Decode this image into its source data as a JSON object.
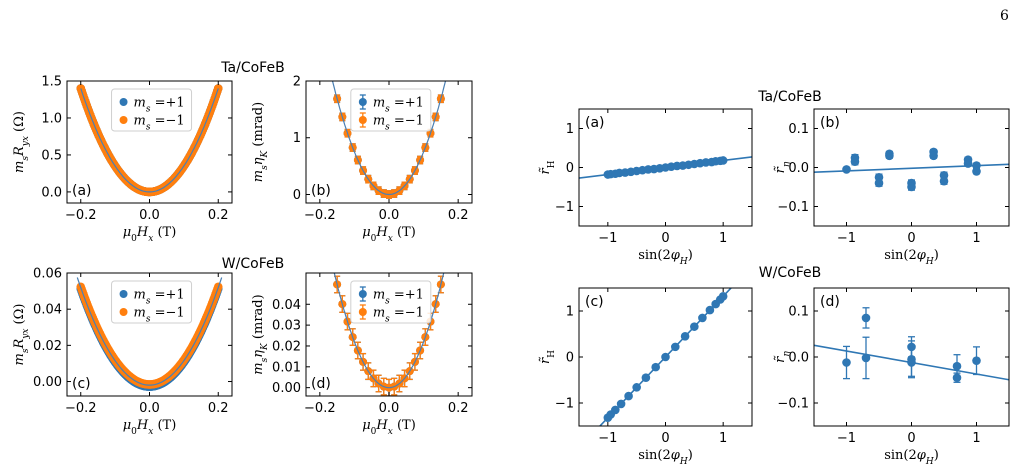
{
  "page_number": "6",
  "colors": {
    "blue": "#2f77b4",
    "orange": "#ff7f0e",
    "line": "#2f77b4"
  },
  "left_group_titles": [
    "Ta/CoFeB",
    "W/CoFeB"
  ],
  "right_group_titles": [
    "Ta/CoFeB",
    "W/CoFeB"
  ],
  "chart_data": [
    {
      "id": "a-left",
      "type": "scatter",
      "group": "Ta/CoFeB",
      "panel_label": "(a)",
      "xlabel": "μ0Hx (T)",
      "ylabel": "msRyx (Ω)",
      "xlim": [
        -0.24,
        0.24
      ],
      "ylim": [
        -0.15,
        1.5
      ],
      "xticks": [
        -0.2,
        0.0,
        0.2
      ],
      "xticklabels": [
        "−0.2",
        "0.0",
        "0.2"
      ],
      "yticks": [
        0.0,
        0.5,
        1.0,
        1.5
      ],
      "yticklabels": [
        "0.0",
        "0.5",
        "1.0",
        "1.5"
      ],
      "legend": [
        "ms=+1",
        "ms=−1"
      ],
      "legend_position": "top-center",
      "model": {
        "kind": "parabola",
        "a": 35,
        "c": 0.0,
        "xmin": -0.2,
        "xmax": 0.2
      },
      "series": [
        {
          "name": "ms=+1",
          "color": "#2f77b4",
          "x_range": [
            -0.2,
            0.2
          ],
          "n": 161,
          "offset": 0
        },
        {
          "name": "ms=−1",
          "color": "#ff7f0e",
          "x_range": [
            -0.2,
            0.2
          ],
          "n": 161,
          "offset": 0
        }
      ]
    },
    {
      "id": "b-left",
      "type": "scatter",
      "group": "Ta/CoFeB",
      "panel_label": "(b)",
      "xlabel": "μ0Hx (T)",
      "ylabel": "msηK (mrad)",
      "xlim": [
        -0.24,
        0.24
      ],
      "ylim": [
        -0.15,
        2.0
      ],
      "xticks": [
        -0.2,
        0.0,
        0.2
      ],
      "xticklabels": [
        "−0.2",
        "0.0",
        "0.2"
      ],
      "yticks": [
        0,
        1,
        2
      ],
      "yticklabels": [
        "0",
        "1",
        "2"
      ],
      "legend": [
        "ms=+1",
        "ms=−1"
      ],
      "legend_position": "top-center",
      "model": {
        "kind": "parabola",
        "a": 75,
        "c": 0.0,
        "xmin": -0.22,
        "xmax": 0.22
      },
      "series": [
        {
          "name": "ms=+1",
          "color": "#2f77b4",
          "x_range": [
            -0.15,
            0.15
          ],
          "n": 21,
          "offset": 0,
          "err": 0.03
        },
        {
          "name": "ms=−1",
          "color": "#ff7f0e",
          "x_range": [
            -0.15,
            0.15
          ],
          "n": 21,
          "offset": 0,
          "err": 0.03
        }
      ]
    },
    {
      "id": "c-left",
      "type": "scatter",
      "group": "W/CoFeB",
      "panel_label": "(c)",
      "xlabel": "μ0Hx (T)",
      "ylabel": "msRyx (Ω)",
      "xlim": [
        -0.24,
        0.24
      ],
      "ylim": [
        -0.008,
        0.06
      ],
      "xticks": [
        -0.2,
        0.0,
        0.2
      ],
      "xticklabels": [
        "−0.2",
        "0.0",
        "0.2"
      ],
      "yticks": [
        0.0,
        0.02,
        0.04,
        0.06
      ],
      "yticklabels": [
        "0.00",
        "0.02",
        "0.04",
        "0.06"
      ],
      "legend": [
        "ms=+1",
        "ms=−1"
      ],
      "legend_position": "top-center",
      "model": {
        "kind": "parabola",
        "a": 1.35,
        "c": -0.002,
        "xmin": -0.21,
        "xmax": 0.21
      },
      "series": [
        {
          "name": "ms=+1",
          "color": "#2f77b4",
          "x_range": [
            -0.2,
            0.2
          ],
          "n": 161,
          "offset": -0.0008
        },
        {
          "name": "ms=−1",
          "color": "#ff7f0e",
          "x_range": [
            -0.2,
            0.2
          ],
          "n": 161,
          "offset": 0.0004
        }
      ]
    },
    {
      "id": "d-left",
      "type": "scatter",
      "group": "W/CoFeB",
      "panel_label": "(d)",
      "xlabel": "μ0Hx (T)",
      "ylabel": "msηK (mrad)",
      "xlim": [
        -0.24,
        0.24
      ],
      "ylim": [
        -0.004,
        0.055
      ],
      "xticks": [
        -0.2,
        0.0,
        0.2
      ],
      "xticklabels": [
        "−0.2",
        "0.0",
        "0.2"
      ],
      "yticks": [
        0.0,
        0.01,
        0.02,
        0.03,
        0.04
      ],
      "yticklabels": [
        "0.00",
        "0.01",
        "0.02",
        "0.03",
        "0.04"
      ],
      "legend": [
        "ms=+1",
        "ms=−1"
      ],
      "legend_position": "top-center",
      "model": {
        "kind": "parabola",
        "a": 2.2,
        "c": 0.0,
        "xmin": -0.17,
        "xmax": 0.17
      },
      "series": [
        {
          "name": "ms=+1",
          "color": "#2f77b4",
          "x_range": [
            -0.15,
            0.15
          ],
          "n": 21,
          "offset": 0,
          "err": 0.003
        },
        {
          "name": "ms=−1",
          "color": "#ff7f0e",
          "x_range": [
            -0.15,
            0.15
          ],
          "n": 21,
          "offset": 0,
          "err": 0.003
        }
      ]
    },
    {
      "id": "a-right",
      "type": "scatter",
      "group": "Ta/CoFeB",
      "panel_label": "(a)",
      "xlabel": "sin(2φH)",
      "ylabel": "r̃H",
      "xlim": [
        -1.5,
        1.5
      ],
      "ylim": [
        -1.5,
        1.5
      ],
      "xticks": [
        -1,
        0,
        1
      ],
      "xticklabels": [
        "−1",
        "0",
        "1"
      ],
      "yticks": [
        -1,
        0,
        1
      ],
      "yticklabels": [
        "−1",
        "0",
        "1"
      ],
      "fit_line": {
        "slope": 0.18,
        "intercept": 0.0
      },
      "points": {
        "x": [
          -1.0,
          -0.95,
          -0.87,
          -0.8,
          -0.7,
          -0.6,
          -0.5,
          -0.4,
          -0.3,
          -0.2,
          -0.1,
          0.0,
          0.1,
          0.2,
          0.3,
          0.4,
          0.5,
          0.6,
          0.7,
          0.8,
          0.87,
          0.95,
          1.0
        ],
        "y": [
          -0.18,
          -0.17,
          -0.16,
          -0.14,
          -0.13,
          -0.11,
          -0.09,
          -0.07,
          -0.05,
          -0.04,
          -0.02,
          0.0,
          0.02,
          0.04,
          0.05,
          0.07,
          0.09,
          0.11,
          0.13,
          0.14,
          0.16,
          0.17,
          0.18
        ],
        "err": []
      }
    },
    {
      "id": "b-right",
      "type": "scatter",
      "group": "Ta/CoFeB",
      "panel_label": "(b)",
      "xlabel": "sin(2φH)",
      "ylabel": "r̃η",
      "xlim": [
        -1.5,
        1.5
      ],
      "ylim": [
        -0.15,
        0.15
      ],
      "xticks": [
        -1,
        0,
        1
      ],
      "xticklabels": [
        "−1",
        "0",
        "1"
      ],
      "yticks": [
        -0.1,
        0.0,
        0.1
      ],
      "yticklabels": [
        "−0.1",
        "0.0",
        "0.1"
      ],
      "fit_line": {
        "slope": 0.0067,
        "intercept": -0.002
      },
      "points": {
        "x": [
          -1.0,
          -0.87,
          -0.87,
          -0.5,
          -0.5,
          -0.34,
          -0.34,
          0.0,
          0.0,
          0.34,
          0.34,
          0.5,
          0.5,
          0.87,
          0.87,
          1.0,
          1.0
        ],
        "y": [
          -0.005,
          0.015,
          0.025,
          -0.025,
          -0.04,
          0.03,
          0.035,
          -0.04,
          -0.05,
          0.04,
          0.03,
          -0.02,
          -0.035,
          0.02,
          0.01,
          0.005,
          -0.01
        ],
        "err": [
          0.005,
          0.008,
          0.008,
          0.008,
          0.008,
          0.006,
          0.006,
          0.008,
          0.008,
          0.006,
          0.006,
          0.008,
          0.008,
          0.006,
          0.006,
          0.006,
          0.006
        ]
      }
    },
    {
      "id": "c-right",
      "type": "scatter",
      "group": "W/CoFeB",
      "panel_label": "(c)",
      "xlabel": "sin(2φH)",
      "ylabel": "r̃H",
      "xlim": [
        -1.5,
        1.5
      ],
      "ylim": [
        -1.5,
        1.5
      ],
      "xticks": [
        -1,
        0,
        1
      ],
      "xticklabels": [
        "−1",
        "0",
        "1"
      ],
      "yticks": [
        -1,
        0,
        1
      ],
      "yticklabels": [
        "−1",
        "0",
        "1"
      ],
      "fit_line": {
        "slope": 1.32,
        "intercept": 0.0
      },
      "points": {
        "x": [
          -1.0,
          -0.95,
          -0.87,
          -0.77,
          -0.64,
          -0.5,
          -0.34,
          -0.17,
          0.0,
          0.17,
          0.34,
          0.5,
          0.64,
          0.77,
          0.87,
          0.95,
          1.0
        ],
        "y": [
          -1.32,
          -1.25,
          -1.15,
          -1.02,
          -0.85,
          -0.66,
          -0.45,
          -0.22,
          0.0,
          0.22,
          0.45,
          0.66,
          0.85,
          1.02,
          1.15,
          1.25,
          1.32
        ],
        "err": []
      }
    },
    {
      "id": "d-right",
      "type": "scatter",
      "group": "W/CoFeB",
      "panel_label": "(d)",
      "xlabel": "sin(2φH)",
      "ylabel": "r̃η",
      "xlim": [
        -1.5,
        1.5
      ],
      "ylim": [
        -0.15,
        0.15
      ],
      "xticks": [
        -1,
        0,
        1
      ],
      "xticklabels": [
        "−1",
        "0",
        "1"
      ],
      "yticks": [
        -0.1,
        0.0,
        0.1
      ],
      "yticklabels": [
        "−0.1",
        "0.0",
        "0.1"
      ],
      "fit_line": {
        "slope": -0.025,
        "intercept": -0.012
      },
      "points": {
        "x": [
          -1.0,
          -0.7,
          -0.7,
          0.0,
          0.0,
          0.0,
          0.7,
          0.7,
          1.0
        ],
        "y": [
          -0.012,
          0.085,
          -0.002,
          0.022,
          -0.005,
          -0.012,
          -0.02,
          -0.045,
          -0.008
        ],
        "err": [
          0.035,
          0.022,
          0.045,
          0.022,
          0.04,
          0.03,
          0.025,
          0.01,
          0.03
        ]
      }
    }
  ]
}
